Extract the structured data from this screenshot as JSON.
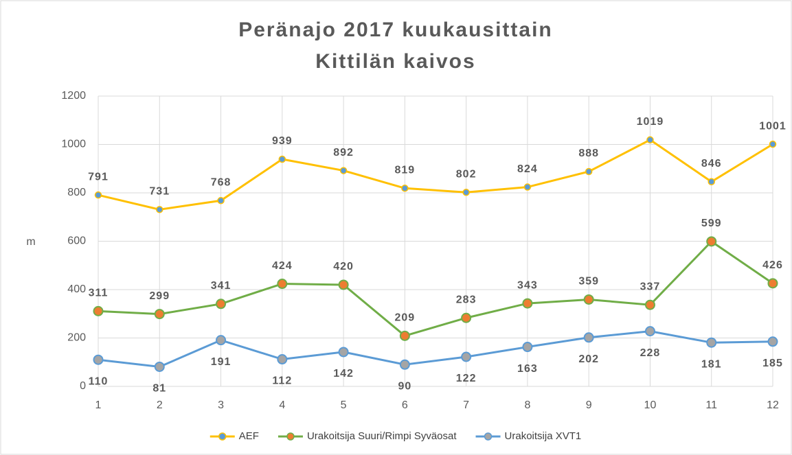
{
  "chart_data": {
    "type": "line",
    "title": "Peränajo 2017 kuukausittain",
    "subtitle": "Kittilän kaivos",
    "y_label": "m",
    "categories": [
      "1",
      "2",
      "3",
      "4",
      "5",
      "6",
      "7",
      "8",
      "9",
      "10",
      "11",
      "12"
    ],
    "ylim": [
      0,
      1200
    ],
    "yticks": [
      0,
      200,
      400,
      600,
      800,
      1000,
      1200
    ],
    "grid": true,
    "legend": "bottom",
    "series": [
      {
        "name": "AEF",
        "color": "#ffc000",
        "marker_color": "#5b9bd5",
        "label_position": "above",
        "values": [
          791,
          731,
          768,
          939,
          892,
          819,
          802,
          824,
          888,
          1019,
          846,
          1001
        ]
      },
      {
        "name": "Urakoitsija Suuri/Rimpi Syväosat",
        "color": "#70ad47",
        "marker_color": "#ed7d31",
        "label_position": "above",
        "values": [
          311,
          299,
          341,
          424,
          420,
          209,
          283,
          343,
          359,
          337,
          599,
          426
        ]
      },
      {
        "name": "Urakoitsija XVT1",
        "color": "#5b9bd5",
        "marker_color": "#a5a5a5",
        "label_position": "below",
        "values": [
          110,
          81,
          191,
          112,
          142,
          90,
          122,
          163,
          202,
          228,
          181,
          185
        ]
      }
    ]
  }
}
